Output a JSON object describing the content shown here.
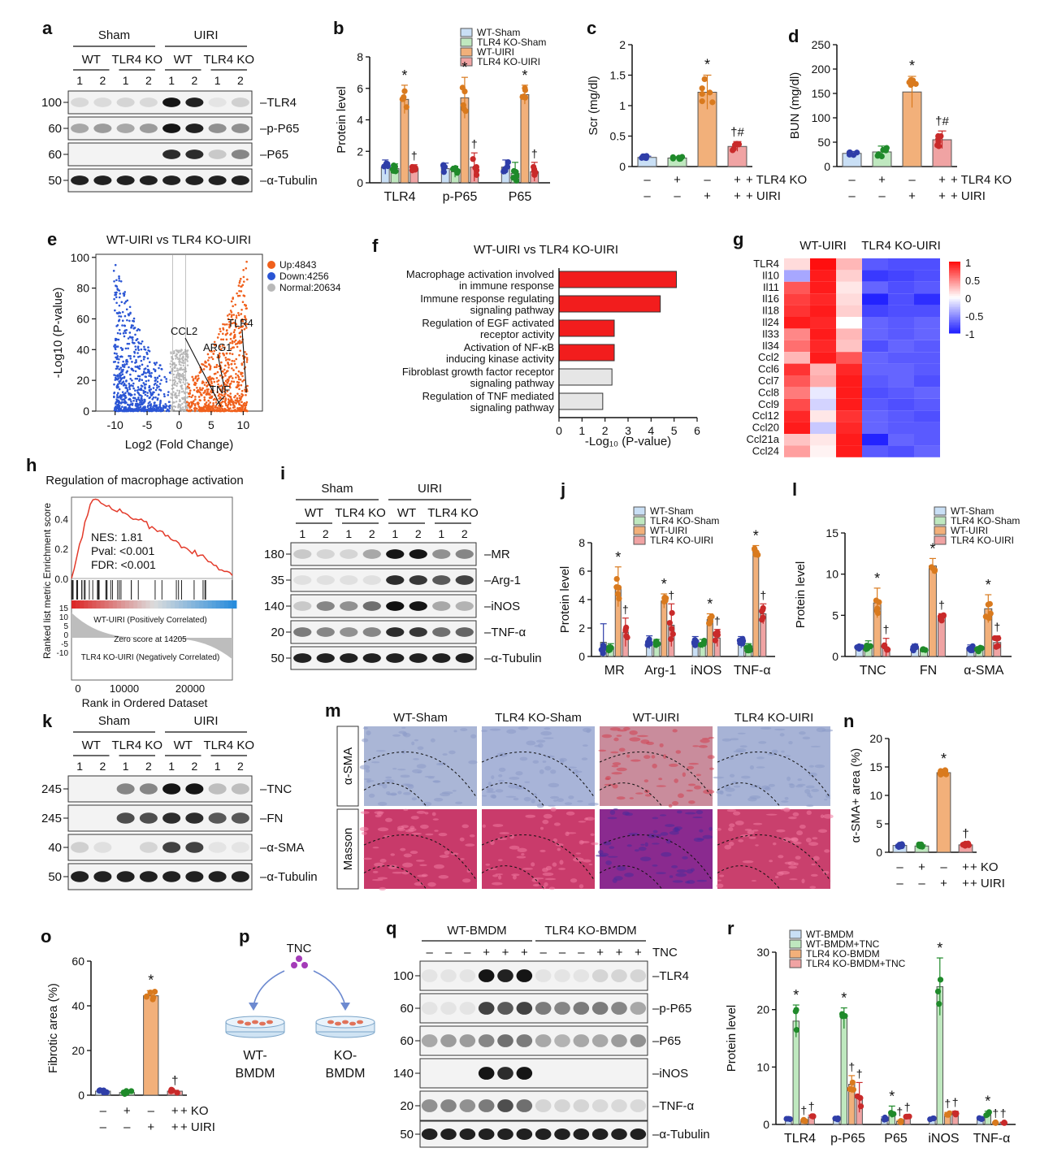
{
  "panel_letters": [
    "a",
    "b",
    "c",
    "d",
    "e",
    "f",
    "g",
    "h",
    "i",
    "j",
    "k",
    "l",
    "m",
    "n",
    "o",
    "p",
    "q",
    "r"
  ],
  "colors": {
    "wt_sham": "#c9dff5",
    "tlr4ko_sham": "#bfe8bf",
    "wt_uiri": "#f2b07a",
    "tlr4ko_uiri": "#f0a3a3",
    "dot_wt_sham": "#2f3ea8",
    "dot_ko_sham": "#1f8a2a",
    "dot_wt_uiri": "#d97a1e",
    "dot_ko_uiri": "#c92a2a",
    "volcano_up": "#f0601c",
    "volcano_down": "#2a55d4",
    "volcano_normal": "#b8b8b8",
    "go_sig": "#f21d1d",
    "go_ns": "#e6e6e6"
  },
  "blot_a": {
    "groups": [
      "Sham",
      "UIRI"
    ],
    "genotypes": [
      "WT",
      "TLR4 KO",
      "WT",
      "TLR4 KO"
    ],
    "lanes": [
      "1",
      "2",
      "1",
      "2",
      "1",
      "2",
      "1",
      "2"
    ],
    "rows": [
      {
        "mw": "100",
        "label": "TLR4"
      },
      {
        "mw": "60",
        "label": "p-P65"
      },
      {
        "mw": "60",
        "label": "P65"
      },
      {
        "mw": "50",
        "label": "α-Tubulin"
      }
    ]
  },
  "blot_i": {
    "groups": [
      "Sham",
      "UIRI"
    ],
    "genotypes": [
      "WT",
      "TLR4 KO",
      "WT",
      "TLR4 KO"
    ],
    "lanes": [
      "1",
      "2",
      "1",
      "2",
      "1",
      "2",
      "1",
      "2"
    ],
    "rows": [
      {
        "mw": "180",
        "label": "MR"
      },
      {
        "mw": "35",
        "label": "Arg-1"
      },
      {
        "mw": "140",
        "label": "iNOS"
      },
      {
        "mw": "20",
        "label": "TNF-α"
      },
      {
        "mw": "50",
        "label": "α-Tubulin"
      }
    ]
  },
  "blot_k": {
    "groups": [
      "Sham",
      "UIRI"
    ],
    "genotypes": [
      "WT",
      "TLR4 KO",
      "WT",
      "TLR4 KO"
    ],
    "lanes": [
      "1",
      "2",
      "1",
      "2",
      "1",
      "2",
      "1",
      "2"
    ],
    "rows": [
      {
        "mw": "245",
        "label": "TNC"
      },
      {
        "mw": "245",
        "label": "FN"
      },
      {
        "mw": "40",
        "label": "α-SMA"
      },
      {
        "mw": "50",
        "label": "α-Tubulin"
      }
    ]
  },
  "blot_q": {
    "groups": [
      "WT-BMDM",
      "TLR4 KO-BMDM"
    ],
    "tnc_row_label": "TNC",
    "tnc_signs": [
      "–",
      "–",
      "–",
      "+",
      "+",
      "+",
      "–",
      "–",
      "–",
      "+",
      "+",
      "+"
    ],
    "rows": [
      {
        "mw": "100",
        "label": "TLR4"
      },
      {
        "mw": "60",
        "label": "p-P65"
      },
      {
        "mw": "60",
        "label": "P65"
      },
      {
        "mw": "140",
        "label": "iNOS"
      },
      {
        "mw": "20",
        "label": "TNF-α"
      },
      {
        "mw": "50",
        "label": "α-Tubulin"
      }
    ]
  },
  "legend_4group": [
    "WT-Sham",
    "TLR4 KO-Sham",
    "WT-UIRI",
    "TLR4 KO-UIRI"
  ],
  "legend_bmdm": [
    "WT-BMDM",
    "WT-BMDM+TNC",
    "TLR4 KO-BMDM",
    "TLR4 KO-BMDM+TNC"
  ],
  "treatment_rows_cd": {
    "row1": [
      "–",
      "+",
      "–",
      "+"
    ],
    "row1_label": "TLR4 KO",
    "row2": [
      "–",
      "–",
      "+",
      "+"
    ],
    "row2_label": "UIRI"
  },
  "treatment_rows_no": {
    "row1": [
      "–",
      "+",
      "–",
      "+"
    ],
    "row1_label": "KO",
    "row2": [
      "–",
      "–",
      "+",
      "+"
    ],
    "row2_label": "UIRI"
  },
  "volcano": {
    "title": "WT-UIRI  vs TLR4 KO-UIRI",
    "legend": [
      "Up:4843",
      "Down:4256",
      "Normal:20634"
    ],
    "genes": [
      "CCL2",
      "ARG1",
      "TLR4",
      "TNF"
    ],
    "xlabel": "Log2 (Fold Change)",
    "ylabel": "-Log10 (P-value)"
  },
  "go_enrichment": {
    "title": "WT-UIRI   vs    TLR4 KO-UIRI",
    "xlabel": "-Log₁₀ (P-value)",
    "terms": [
      {
        "line1": "Macrophage activation involved",
        "line2": "in immune response",
        "value": 5.1,
        "sig": true
      },
      {
        "line1": "Immune response regulating",
        "line2": "signaling pathway",
        "value": 4.4,
        "sig": true
      },
      {
        "line1": "Regulation of EGF activated",
        "line2": "receptor activity",
        "value": 2.4,
        "sig": true
      },
      {
        "line1": "Activation of NF-κB",
        "line2": "inducing kinase activity",
        "value": 2.4,
        "sig": true
      },
      {
        "line1": "Fibroblast growth factor receptor",
        "line2": "signaling pathway",
        "value": 2.3,
        "sig": false
      },
      {
        "line1": "Regulation of TNF mediated",
        "line2": "signaling pathway",
        "value": 1.9,
        "sig": false
      }
    ]
  },
  "heatmap": {
    "col_groups": [
      "WT-UIRI",
      "TLR4 KO-UIRI"
    ],
    "genes": [
      "TLR4",
      "Il10",
      "Il11",
      "Il16",
      "Il18",
      "Il24",
      "Il33",
      "Il34",
      "Ccl2",
      "Ccl6",
      "Ccl7",
      "Ccl8",
      "Ccl9",
      "Ccl12",
      "Ccl20",
      "Ccl21a",
      "Ccl24"
    ],
    "scale_ticks": [
      "1",
      "0.5",
      "0",
      "-0.5",
      "-1"
    ],
    "values": [
      [
        0.15,
        1.0,
        0.3,
        -0.75,
        -0.8,
        -0.8
      ],
      [
        -0.4,
        0.95,
        0.2,
        -0.9,
        -0.85,
        -0.8
      ],
      [
        0.7,
        0.95,
        0.1,
        -0.7,
        -0.8,
        -0.75
      ],
      [
        0.8,
        0.9,
        0.15,
        -1.0,
        -0.8,
        -0.95
      ],
      [
        0.85,
        0.95,
        0.2,
        -0.85,
        -0.8,
        -0.8
      ],
      [
        0.95,
        0.9,
        0.0,
        -0.7,
        -0.75,
        -0.7
      ],
      [
        0.5,
        0.95,
        0.3,
        -0.7,
        -0.75,
        -0.7
      ],
      [
        0.6,
        0.9,
        0.25,
        -0.8,
        -0.7,
        -0.75
      ],
      [
        0.3,
        0.95,
        0.7,
        -0.7,
        -0.75,
        -0.75
      ],
      [
        0.85,
        0.3,
        0.9,
        -0.7,
        -0.7,
        -0.75
      ],
      [
        0.7,
        0.35,
        0.95,
        -0.75,
        -0.7,
        -0.8
      ],
      [
        0.55,
        -0.1,
        0.95,
        -0.8,
        -0.75,
        -0.7
      ],
      [
        0.75,
        -0.2,
        0.95,
        -0.75,
        -0.8,
        -0.75
      ],
      [
        0.9,
        0.1,
        0.85,
        -0.7,
        -0.75,
        -0.8
      ],
      [
        0.95,
        -0.25,
        0.9,
        -0.7,
        -0.75,
        -0.75
      ],
      [
        0.25,
        0.1,
        0.95,
        -1.0,
        -0.7,
        -0.75
      ],
      [
        0.4,
        0.05,
        0.95,
        -0.75,
        -0.8,
        -0.7
      ]
    ]
  },
  "gsea": {
    "title": "Regulation of macrophage activation",
    "stats": [
      "NES: 1.81",
      "Pval: <0.001",
      "FDR: <0.001"
    ],
    "pos_label": "WT-UIRI (Positively Correlated)",
    "zero_label": "Zero score at 14205",
    "neg_label": "TLR4 KO-UIRI (Negatively Correlated)",
    "ylabel": "Ranked list metric Enrichment score",
    "xlabel": "Rank in Ordered Dataset",
    "es_ticks": [
      "0.4",
      "0.2",
      "0.0"
    ],
    "rank_ticks": [
      "15",
      "10",
      "5",
      "0",
      "-5",
      "-10"
    ],
    "x_ticks": [
      "0",
      "10000",
      "20000"
    ]
  },
  "micrographs": {
    "columns": [
      "WT-Sham",
      "TLR4 KO-Sham",
      "WT-UIRI",
      "TLR4 KO-UIRI"
    ],
    "rows": [
      "α-SMA",
      "Masson"
    ]
  },
  "schematic_p": {
    "top": "TNC",
    "left_1": "WT-",
    "left_2": "BMDM",
    "right_1": "KO-",
    "right_2": "BMDM"
  },
  "chart_data": [
    {
      "panel": "b",
      "type": "bar",
      "ylabel": "Protein level",
      "categories": [
        "TLR4",
        "p-P65",
        "P65"
      ],
      "ylim": [
        0,
        8
      ],
      "yticks": [
        0,
        2,
        4,
        6,
        8
      ],
      "series": [
        {
          "name": "WT-Sham",
          "values": [
            1.0,
            0.9,
            1.0
          ],
          "err": [
            0.45,
            0.35,
            0.45
          ]
        },
        {
          "name": "TLR4 KO-Sham",
          "values": [
            0.9,
            0.7,
            0.6
          ],
          "err": [
            0.3,
            0.35,
            0.7
          ]
        },
        {
          "name": "WT-UIRI",
          "values": [
            5.3,
            5.4,
            5.6
          ],
          "err": [
            0.9,
            1.3,
            0.6
          ]
        },
        {
          "name": "TLR4 KO-UIRI",
          "values": [
            0.9,
            1.0,
            0.7
          ],
          "err": [
            0.25,
            0.9,
            0.6
          ]
        }
      ],
      "marks": [
        [
          "",
          "",
          "*",
          "†"
        ],
        [
          "",
          "",
          "*",
          "†"
        ],
        [
          "",
          "",
          "*",
          "†"
        ]
      ]
    },
    {
      "panel": "c",
      "type": "bar",
      "ylabel": "Scr (mg/dl)",
      "categories": [
        "1",
        "2",
        "3",
        "4"
      ],
      "ylim": [
        0,
        2.0
      ],
      "yticks": [
        0,
        0.5,
        1.0,
        1.5,
        2.0
      ],
      "series": [
        {
          "name": "",
          "values": [
            0.15,
            0.14,
            1.22,
            0.33
          ],
          "err": [
            0.02,
            0.02,
            0.28,
            0.08
          ]
        }
      ],
      "marks": [
        "",
        "",
        "*",
        "†#"
      ]
    },
    {
      "panel": "d",
      "type": "bar",
      "ylabel": "BUN (mg/dl)",
      "categories": [
        "1",
        "2",
        "3",
        "4"
      ],
      "ylim": [
        0,
        250
      ],
      "yticks": [
        0,
        50,
        100,
        150,
        200,
        250
      ],
      "series": [
        {
          "name": "",
          "values": [
            27,
            30,
            153,
            55
          ],
          "err": [
            4,
            12,
            32,
            18
          ]
        }
      ],
      "marks": [
        "",
        "",
        "*",
        "†#"
      ]
    },
    {
      "panel": "j",
      "type": "bar",
      "ylabel": "Protein level",
      "categories": [
        "MR",
        "Arg-1",
        "iNOS",
        "TNF-α"
      ],
      "ylim": [
        0,
        8
      ],
      "yticks": [
        0,
        2,
        4,
        6,
        8
      ],
      "series": [
        {
          "name": "WT-Sham",
          "values": [
            1.0,
            1.0,
            1.0,
            1.0
          ],
          "err": [
            1.3,
            0.45,
            0.4,
            0.4
          ]
        },
        {
          "name": "TLR4 KO-Sham",
          "values": [
            0.6,
            0.9,
            0.9,
            0.6
          ],
          "err": [
            0.3,
            0.3,
            0.3,
            0.3
          ]
        },
        {
          "name": "WT-UIRI",
          "values": [
            4.9,
            3.9,
            2.6,
            7.4
          ],
          "err": [
            1.4,
            0.5,
            0.4,
            0.4
          ]
        },
        {
          "name": "TLR4 KO-UIRI",
          "values": [
            1.7,
            2.2,
            1.3,
            3.0
          ],
          "err": [
            1.0,
            1.5,
            0.6,
            0.7
          ]
        }
      ],
      "marks": [
        [
          "",
          "",
          "*",
          "†"
        ],
        [
          "",
          "",
          "*",
          "†"
        ],
        [
          "",
          "",
          "*",
          "†"
        ],
        [
          "",
          "",
          "*",
          "†"
        ]
      ]
    },
    {
      "panel": "l",
      "type": "bar",
      "ylabel": "Protein level",
      "categories": [
        "TNC",
        "FN",
        "α-SMA"
      ],
      "ylim": [
        0,
        15
      ],
      "yticks": [
        0,
        5,
        10,
        15
      ],
      "series": [
        {
          "name": "WT-Sham",
          "values": [
            1.0,
            1.0,
            1.0
          ],
          "err": [
            0.4,
            0.5,
            0.4
          ]
        },
        {
          "name": "TLR4 KO-Sham",
          "values": [
            1.3,
            0.8,
            0.8
          ],
          "err": [
            0.6,
            0.2,
            0.4
          ]
        },
        {
          "name": "WT-UIRI",
          "values": [
            6.5,
            11.0,
            5.8
          ],
          "err": [
            1.8,
            0.9,
            1.7
          ]
        },
        {
          "name": "TLR4 KO-UIRI",
          "values": [
            1.0,
            4.7,
            1.7
          ],
          "err": [
            1.2,
            0.5,
            0.8
          ]
        }
      ],
      "marks": [
        [
          "",
          "",
          "*",
          "†"
        ],
        [
          "",
          "",
          "*",
          "†"
        ],
        [
          "",
          "",
          "*",
          "†"
        ]
      ]
    },
    {
      "panel": "n",
      "type": "bar",
      "ylabel": "α-SMA+ area (%)",
      "categories": [
        "1",
        "2",
        "3",
        "4"
      ],
      "ylim": [
        0,
        20
      ],
      "yticks": [
        0,
        5,
        10,
        15,
        20
      ],
      "series": [
        {
          "name": "",
          "values": [
            1.2,
            1.1,
            14.0,
            1.3
          ],
          "err": [
            0.2,
            0.2,
            0.6,
            0.3
          ]
        }
      ],
      "marks": [
        "",
        "",
        "*",
        "†"
      ]
    },
    {
      "panel": "o",
      "type": "bar",
      "ylabel": "Fibrotic area (%)",
      "categories": [
        "1",
        "2",
        "3",
        "4"
      ],
      "ylim": [
        0,
        60
      ],
      "yticks": [
        0,
        20,
        40,
        60
      ],
      "series": [
        {
          "name": "",
          "values": [
            1.8,
            1.2,
            44.5,
            1.8
          ],
          "err": [
            0.3,
            0.3,
            2.3,
            0.4
          ]
        }
      ],
      "marks": [
        "",
        "",
        "*",
        "†"
      ]
    },
    {
      "panel": "r",
      "type": "bar",
      "ylabel": "Protein level",
      "categories": [
        "TLR4",
        "p-P65",
        "P65",
        "iNOS",
        "TNF-α"
      ],
      "ylim": [
        0,
        30
      ],
      "yticks": [
        0,
        10,
        20,
        30
      ],
      "series": [
        {
          "name": "WT-BMDM",
          "values": [
            1.0,
            1.0,
            1.0,
            1.0,
            1.0
          ],
          "err": [
            0.2,
            0.2,
            0.3,
            0.2,
            0.2
          ]
        },
        {
          "name": "WT-BMDM+TNC",
          "values": [
            18.0,
            18.5,
            2.2,
            24.0,
            1.8
          ],
          "err": [
            2.8,
            1.8,
            1.0,
            5.0,
            0.5
          ]
        },
        {
          "name": "TLR4 KO-BMDM",
          "values": [
            0.7,
            7.0,
            0.5,
            1.8,
            0.3
          ],
          "err": [
            0.2,
            1.5,
            0.2,
            0.3,
            0.1
          ]
        },
        {
          "name": "TLR4 KO-BMDM+TNC",
          "values": [
            1.3,
            4.7,
            1.2,
            1.9,
            0.3
          ],
          "err": [
            0.3,
            2.6,
            0.3,
            0.4,
            0.1
          ]
        }
      ],
      "marks": [
        [
          "",
          "*",
          "†",
          "†"
        ],
        [
          "",
          "*",
          "†",
          "†"
        ],
        [
          "",
          "*",
          "†",
          "†"
        ],
        [
          "",
          "*",
          "†",
          "†"
        ],
        [
          "",
          "*",
          "†",
          "†"
        ]
      ]
    }
  ]
}
